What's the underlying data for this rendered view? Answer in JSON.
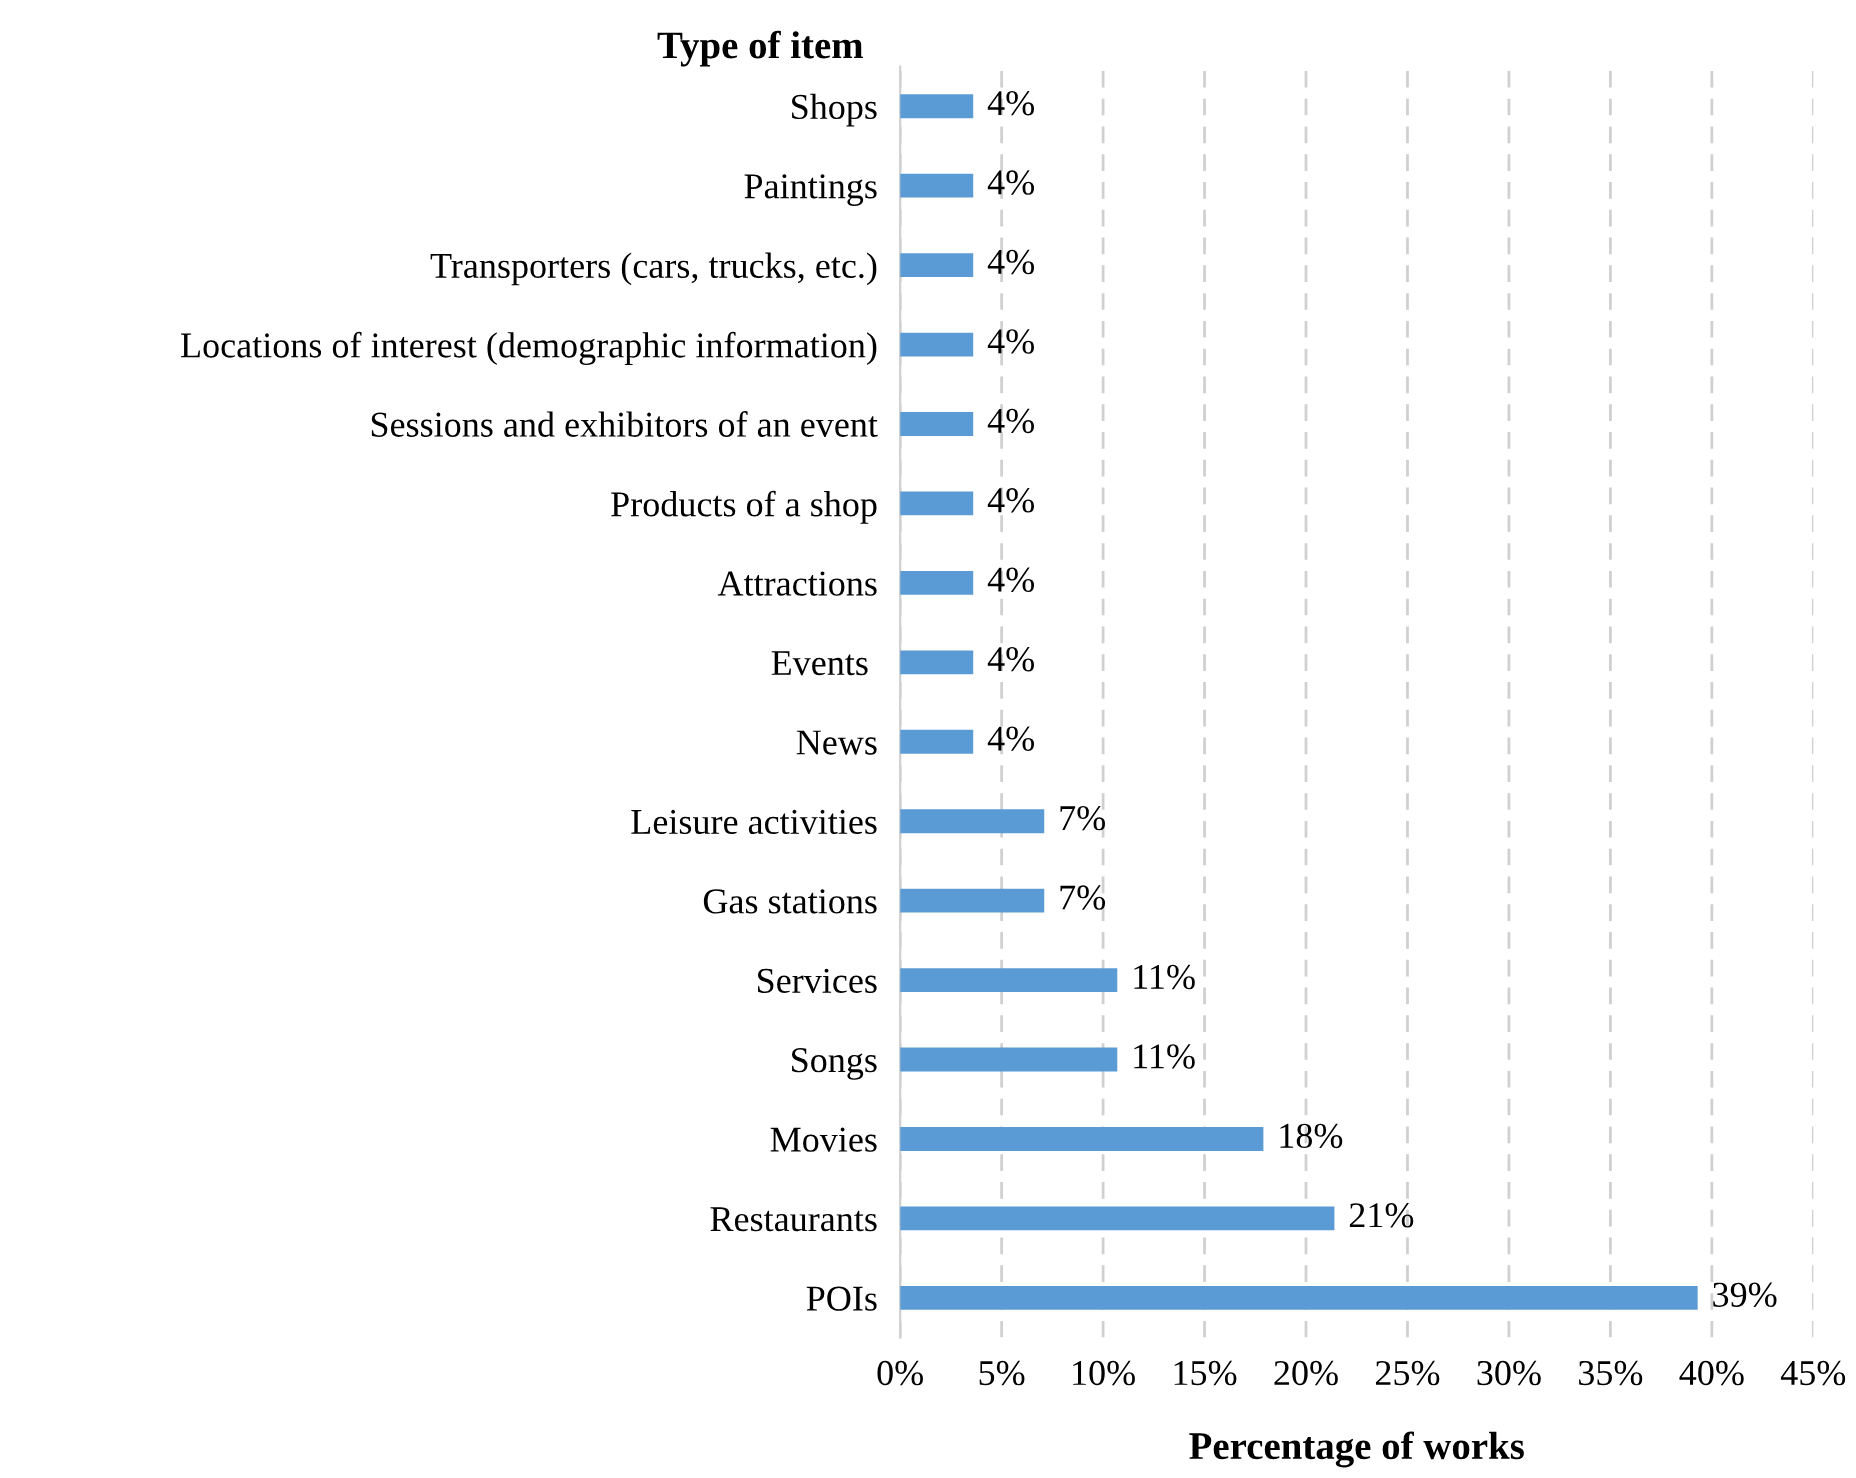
{
  "chart_data": {
    "type": "bar",
    "orientation": "horizontal",
    "ylabel": "Type of item",
    "xlabel": "Percentage of works",
    "categories": [
      "Shops",
      "Paintings",
      "Transporters (cars, trucks, etc.)",
      "Locations of interest (demographic information)",
      "Sessions and exhibitors of an event",
      "Products of a shop",
      "Attractions",
      "Events ",
      "News",
      "Leisure activities",
      "Gas stations",
      "Services",
      "Songs",
      "Movies",
      "Restaurants",
      "POIs"
    ],
    "values": [
      3.6,
      3.6,
      3.6,
      3.6,
      3.6,
      3.6,
      3.6,
      3.6,
      3.6,
      7.1,
      7.1,
      10.7,
      10.7,
      17.9,
      21.4,
      39.3
    ],
    "value_labels": [
      "4%",
      "4%",
      "4%",
      "4%",
      "4%",
      "4%",
      "4%",
      "4%",
      "4%",
      "7%",
      "7%",
      "11%",
      "11%",
      "18%",
      "21%",
      "39%"
    ],
    "color": "#5b9bd5",
    "xlim": [
      0,
      45
    ],
    "xticks": [
      {
        "value": 0,
        "label": "0%"
      },
      {
        "value": 5,
        "label": "5%"
      },
      {
        "value": 10,
        "label": "10%"
      },
      {
        "value": 15,
        "label": "15%"
      },
      {
        "value": 20,
        "label": "20%"
      },
      {
        "value": 25,
        "label": "25%"
      },
      {
        "value": 30,
        "label": "30%"
      },
      {
        "value": 35,
        "label": "35%"
      },
      {
        "value": 40,
        "label": "40%"
      },
      {
        "value": 45,
        "label": "45%"
      }
    ],
    "grid": "x",
    "legend": false
  }
}
